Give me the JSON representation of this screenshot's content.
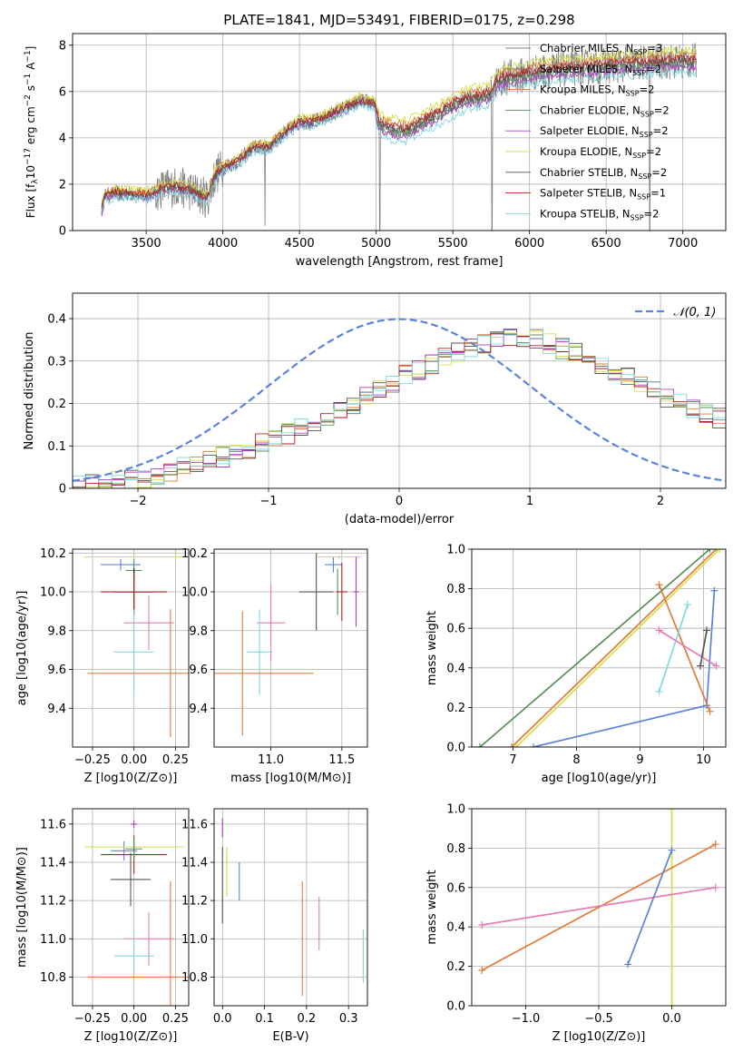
{
  "figure_title": "PLATE=1841, MJD=53491, FIBERID=0175, z=0.298",
  "colors": {
    "data": "#808080",
    "models": [
      "#e07b39",
      "#5a8f5a",
      "#a843c2",
      "#d6e04a",
      "#555555",
      "#b22222",
      "#7fd9e0"
    ],
    "pink": "#e87ab4",
    "blue": "#5b84d8"
  },
  "chart_data": [
    {
      "id": "spectrum",
      "type": "line",
      "title": "PLATE=1841, MJD=53491, FIBERID=0175, z=0.298",
      "xlabel": "wavelength [Angstrom, rest frame]",
      "ylabel": "Flux [f_λ 10^-17 erg cm^-2 s^-1 A^-1]",
      "xlim": [
        3020,
        7280
      ],
      "ylim": [
        0,
        8.5
      ],
      "xticks": [
        3500,
        4000,
        4500,
        5000,
        5500,
        6000,
        6500,
        7000
      ],
      "yticks": [
        0,
        2,
        4,
        6,
        8
      ],
      "legend_position": "top-right",
      "legend": [
        "Chabrier MILES, N_SSP=3",
        "Salpeter MILES, N_SSP=2",
        "Kroupa MILES, N_SSP=2",
        "Chabrier ELODIE, N_SSP=2",
        "Salpeter ELODIE, N_SSP=2",
        "Kroupa ELODIE, N_SSP=2",
        "Chabrier STELIB, N_SSP=2",
        "Salpeter STELIB, N_SSP=1",
        "Kroupa STELIB, N_SSP=2"
      ],
      "continuum": {
        "x": [
          3210,
          3230,
          3300,
          3400,
          3500,
          3600,
          3700,
          3800,
          3900,
          3950,
          4000,
          4100,
          4200,
          4300,
          4400,
          4500,
          4600,
          4700,
          4800,
          4900,
          4990,
          5020,
          5100,
          5200,
          5300,
          5400,
          5500,
          5600,
          5700,
          5750,
          5780,
          5850,
          5950,
          6100,
          6300,
          6500,
          6700,
          6900,
          7100
        ],
        "y": [
          0.9,
          1.5,
          1.6,
          1.6,
          1.5,
          1.8,
          1.9,
          1.7,
          1.4,
          2.4,
          2.7,
          3.0,
          3.6,
          3.6,
          4.2,
          4.7,
          4.7,
          5.0,
          5.3,
          5.6,
          5.5,
          4.6,
          4.4,
          4.3,
          4.7,
          5.0,
          5.4,
          5.7,
          5.8,
          5.9,
          6.4,
          6.6,
          6.7,
          6.9,
          7.0,
          7.1,
          7.2,
          7.3,
          7.3
        ]
      }
    },
    {
      "id": "residual_hist",
      "type": "line",
      "xlabel": "(data-model)/error",
      "ylabel": "Normed distribution",
      "xlim": [
        -2.5,
        2.5
      ],
      "ylim": [
        0,
        0.46
      ],
      "xticks": [
        -2,
        -1,
        0,
        1,
        2
      ],
      "yticks": [
        0.0,
        0.1,
        0.2,
        0.3,
        0.4
      ],
      "legend": [
        "𝒩(0, 1)"
      ],
      "legend_position": "top-right",
      "bins": 50,
      "hist_shape": {
        "x": [
          -2.5,
          -2.0,
          -1.5,
          -1.0,
          -0.5,
          0.0,
          0.5,
          1.0,
          1.5,
          2.0,
          2.5
        ],
        "y": [
          0.005,
          0.02,
          0.06,
          0.11,
          0.17,
          0.26,
          0.33,
          0.36,
          0.3,
          0.22,
          0.16
        ]
      }
    },
    {
      "id": "age_vs_Z",
      "type": "scatter",
      "xlabel": "Z [log10(Z/Z⊙)]",
      "ylabel": "age  [log10(age/yr)]",
      "xlim": [
        -0.37,
        0.33
      ],
      "ylim": [
        9.2,
        10.22
      ],
      "xticks": [
        -0.25,
        0.0,
        0.25
      ],
      "yticks": [
        9.4,
        9.6,
        9.8,
        10.0,
        10.2
      ],
      "points": [
        {
          "x": -0.08,
          "y": 10.14,
          "xerr": 0.12,
          "yerr": 0.03,
          "c": "blue"
        },
        {
          "x": 0.0,
          "y": 10.18,
          "xerr": 0.3,
          "yerr": 0.01,
          "c": "m3"
        },
        {
          "x": 0.0,
          "y": 10.11,
          "xerr": 0.05,
          "yerr": 0.06,
          "c": "m1"
        },
        {
          "x": 0.0,
          "y": 10.0,
          "xerr": 0.12,
          "yerr": 0.12,
          "c": "m6"
        },
        {
          "x": 0.0,
          "y": 10.0,
          "xerr": 0.2,
          "yerr": 0.1,
          "c": "m5"
        },
        {
          "x": 0.09,
          "y": 9.84,
          "xerr": 0.15,
          "yerr": 0.14,
          "c": "pink"
        },
        {
          "x": 0.0,
          "y": 9.69,
          "xerr": 0.12,
          "yerr": 0.22,
          "c": "m6c"
        },
        {
          "x": 0.22,
          "y": 9.58,
          "xerr": 0.5,
          "yerr": 0.33,
          "c": "m0"
        }
      ]
    },
    {
      "id": "age_vs_mass",
      "type": "scatter",
      "xlabel": "mass [log10(M/M⊙)]",
      "ylabel": "",
      "xlim": [
        10.6,
        11.68
      ],
      "ylim": [
        9.2,
        10.22
      ],
      "xticks": [
        11.0,
        11.5
      ],
      "yticks": [
        9.4,
        9.6,
        9.8,
        10.0,
        10.2
      ],
      "points": [
        {
          "x": 11.44,
          "y": 10.14,
          "xerr": 0.06,
          "yerr": 0.04,
          "c": "blue"
        },
        {
          "x": 11.48,
          "y": 10.18,
          "xerr": 0.15,
          "yerr": 0.01,
          "c": "m3"
        },
        {
          "x": 11.6,
          "y": 10.0,
          "xerr": 0.02,
          "yerr": 0.18,
          "c": "m2"
        },
        {
          "x": 11.47,
          "y": 10.0,
          "xerr": 0.01,
          "yerr": 0.12,
          "c": "m1"
        },
        {
          "x": 11.5,
          "y": 10.0,
          "xerr": 0.04,
          "yerr": 0.15,
          "c": "m5"
        },
        {
          "x": 11.32,
          "y": 10.0,
          "xerr": 0.12,
          "yerr": 0.2,
          "c": "m4"
        },
        {
          "x": 11.0,
          "y": 9.84,
          "xerr": 0.1,
          "yerr": 0.2,
          "c": "pink"
        },
        {
          "x": 10.92,
          "y": 9.69,
          "xerr": 0.09,
          "yerr": 0.22,
          "c": "m6c"
        },
        {
          "x": 10.8,
          "y": 9.58,
          "xerr": 0.5,
          "yerr": 0.32,
          "c": "m0"
        }
      ]
    },
    {
      "id": "massweight_vs_age",
      "type": "line",
      "xlabel": "age  [log10(age/yr)]",
      "ylabel": "mass weight",
      "xlim": [
        6.35,
        10.35
      ],
      "ylim": [
        0,
        1.0
      ],
      "xticks": [
        7,
        8,
        9,
        10
      ],
      "yticks": [
        0.0,
        0.2,
        0.4,
        0.6,
        0.8,
        1.0
      ],
      "series": [
        {
          "c": "m1",
          "x": [
            6.48,
            10.1
          ],
          "y": [
            0.0,
            1.0
          ]
        },
        {
          "c": "m0",
          "x": [
            6.98,
            10.2
          ],
          "y": [
            0.0,
            1.0
          ]
        },
        {
          "c": "m3",
          "x": [
            7.05,
            10.25
          ],
          "y": [
            0.0,
            1.0
          ]
        },
        {
          "c": "blue",
          "x": [
            7.32,
            10.05,
            10.17
          ],
          "y": [
            0.0,
            0.21,
            0.79
          ]
        },
        {
          "c": "m0",
          "x": [
            9.3,
            10.1
          ],
          "y": [
            0.82,
            0.18
          ]
        },
        {
          "c": "m6c",
          "x": [
            9.3,
            9.75
          ],
          "y": [
            0.28,
            0.72
          ]
        },
        {
          "c": "pink",
          "x": [
            9.3,
            10.2
          ],
          "y": [
            0.59,
            0.41
          ]
        },
        {
          "c": "m4",
          "x": [
            9.95,
            10.05
          ],
          "y": [
            0.41,
            0.59
          ]
        }
      ]
    },
    {
      "id": "mass_vs_Z",
      "type": "scatter",
      "xlabel": "Z [log10(Z/Z⊙)]",
      "ylabel": "mass [log10(M/M⊙)]",
      "xlim": [
        -0.37,
        0.33
      ],
      "ylim": [
        10.65,
        11.68
      ],
      "xticks": [
        -0.25,
        0.0,
        0.25
      ],
      "yticks": [
        10.8,
        11.0,
        11.2,
        11.4,
        11.6
      ],
      "points": [
        {
          "x": -0.06,
          "y": 11.46,
          "xerr": 0.08,
          "yerr": 0.05,
          "c": "blue"
        },
        {
          "x": 0.0,
          "y": 11.6,
          "xerr": 0.02,
          "yerr": 0.02,
          "c": "m2"
        },
        {
          "x": 0.0,
          "y": 11.48,
          "xerr": 0.3,
          "yerr": 0.01,
          "c": "m3"
        },
        {
          "x": 0.0,
          "y": 11.44,
          "xerr": 0.2,
          "yerr": 0.1,
          "c": "m5"
        },
        {
          "x": 0.0,
          "y": 11.47,
          "xerr": 0.05,
          "yerr": 0.06,
          "c": "m1"
        },
        {
          "x": -0.02,
          "y": 11.31,
          "xerr": 0.12,
          "yerr": 0.14,
          "c": "m4"
        },
        {
          "x": 0.09,
          "y": 11.0,
          "xerr": 0.15,
          "yerr": 0.14,
          "c": "pink"
        },
        {
          "x": 0.0,
          "y": 10.91,
          "xerr": 0.12,
          "yerr": 0.12,
          "c": "m6c"
        },
        {
          "x": 0.22,
          "y": 10.8,
          "xerr": 0.5,
          "yerr": 0.5,
          "c": "m0"
        }
      ]
    },
    {
      "id": "mass_vs_ebv",
      "type": "scatter",
      "xlabel": "E(B-V)",
      "ylabel": "",
      "xlim": [
        -0.02,
        0.345
      ],
      "ylim": [
        10.65,
        11.68
      ],
      "xticks": [
        0.0,
        0.1,
        0.2,
        0.3
      ],
      "yticks": [
        10.8,
        11.0,
        11.2,
        11.4,
        11.6
      ],
      "points": [
        {
          "x": 0.0,
          "y": 11.58,
          "yerr": 0.05,
          "c": "m2"
        },
        {
          "x": 0.0,
          "y": 11.28,
          "yerr": 0.2,
          "c": "m4"
        },
        {
          "x": 0.01,
          "y": 11.35,
          "yerr": 0.13,
          "c": "m3"
        },
        {
          "x": 0.04,
          "y": 11.3,
          "yerr": 0.1,
          "c": "blue"
        },
        {
          "x": 0.19,
          "y": 11.0,
          "yerr": 0.3,
          "c": "m0"
        },
        {
          "x": 0.23,
          "y": 11.08,
          "yerr": 0.14,
          "c": "pink"
        },
        {
          "x": 0.335,
          "y": 10.91,
          "yerr": 0.14,
          "c": "m6c"
        }
      ]
    },
    {
      "id": "massweight_vs_Z",
      "type": "line",
      "xlabel": "Z [log10(Z/Z⊙)]",
      "ylabel": "mass weight",
      "xlim": [
        -1.37,
        0.37
      ],
      "ylim": [
        0,
        1.0
      ],
      "xticks": [
        -1.0,
        -0.5,
        0.0
      ],
      "yticks": [
        0.0,
        0.2,
        0.4,
        0.6,
        0.8,
        1.0
      ],
      "series": [
        {
          "c": "m3",
          "x": [
            0.0,
            0.0
          ],
          "y": [
            0.0,
            1.0
          ]
        },
        {
          "c": "m0",
          "x": [
            -1.3,
            0.3
          ],
          "y": [
            0.18,
            0.82
          ]
        },
        {
          "c": "pink",
          "x": [
            -1.3,
            0.3
          ],
          "y": [
            0.41,
            0.6
          ]
        },
        {
          "c": "blue",
          "x": [
            -0.3,
            0.0
          ],
          "y": [
            0.21,
            0.79
          ]
        }
      ]
    }
  ],
  "tick_suffix_labels": {
    "mathfont": "DejaVu Sans"
  }
}
